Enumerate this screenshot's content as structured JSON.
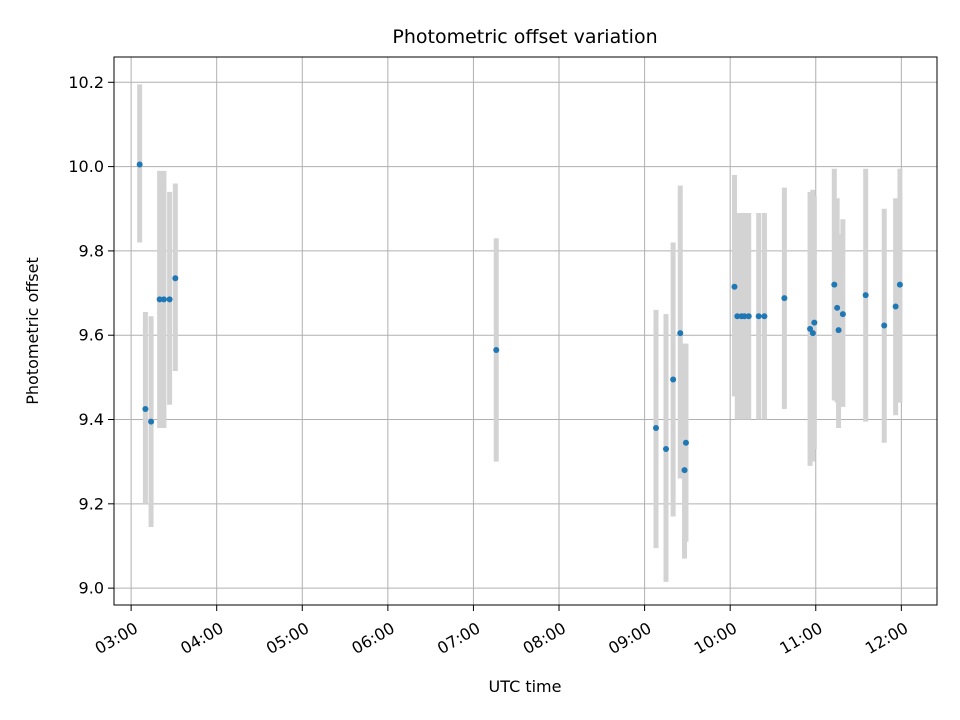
{
  "chart_data": {
    "type": "scatter",
    "title": "Photometric offset variation",
    "xlabel": "UTC time",
    "ylabel": "Photometric offset",
    "x_ticks": [
      "03:00",
      "04:00",
      "05:00",
      "06:00",
      "07:00",
      "08:00",
      "09:00",
      "10:00",
      "11:00",
      "12:00"
    ],
    "x_tick_hours": [
      3,
      4,
      5,
      6,
      7,
      8,
      9,
      10,
      11,
      12
    ],
    "y_ticks": [
      9.0,
      9.2,
      9.4,
      9.6,
      9.8,
      10.0,
      10.2
    ],
    "y_tick_labels": [
      "9.0",
      "9.2",
      "9.4",
      "9.6",
      "9.8",
      "10.0",
      "10.2"
    ],
    "xlim": [
      "02:48",
      "12:25"
    ],
    "ylim": [
      8.96,
      10.26
    ],
    "grid": true,
    "colors": {
      "point": "#1f77b4",
      "errorbar": "#d3d3d3",
      "grid": "#b0b0b0"
    },
    "points": [
      {
        "t": "03:06",
        "y": 10.005,
        "lo": 9.82,
        "hi": 10.195
      },
      {
        "t": "03:10",
        "y": 9.425,
        "lo": 9.2,
        "hi": 9.655
      },
      {
        "t": "03:14",
        "y": 9.395,
        "lo": 9.145,
        "hi": 9.645
      },
      {
        "t": "03:20",
        "y": 9.685,
        "lo": 9.38,
        "hi": 9.99
      },
      {
        "t": "03:23",
        "y": 9.685,
        "lo": 9.38,
        "hi": 9.99
      },
      {
        "t": "03:27",
        "y": 9.685,
        "lo": 9.435,
        "hi": 9.94
      },
      {
        "t": "03:31",
        "y": 9.735,
        "lo": 9.515,
        "hi": 9.96
      },
      {
        "t": "07:16",
        "y": 9.565,
        "lo": 9.3,
        "hi": 9.83
      },
      {
        "t": "09:08",
        "y": 9.38,
        "lo": 9.095,
        "hi": 9.66
      },
      {
        "t": "09:15",
        "y": 9.33,
        "lo": 9.015,
        "hi": 9.65
      },
      {
        "t": "09:20",
        "y": 9.495,
        "lo": 9.17,
        "hi": 9.82
      },
      {
        "t": "09:25",
        "y": 9.605,
        "lo": 9.26,
        "hi": 9.955
      },
      {
        "t": "09:28",
        "y": 9.28,
        "lo": 9.07,
        "hi": 9.58
      },
      {
        "t": "09:29",
        "y": 9.345,
        "lo": 9.11,
        "hi": 9.58
      },
      {
        "t": "10:03",
        "y": 9.715,
        "lo": 9.455,
        "hi": 9.98
      },
      {
        "t": "10:05",
        "y": 9.645,
        "lo": 9.4,
        "hi": 9.89
      },
      {
        "t": "10:08",
        "y": 9.645,
        "lo": 9.4,
        "hi": 9.89
      },
      {
        "t": "10:10",
        "y": 9.645,
        "lo": 9.4,
        "hi": 9.89
      },
      {
        "t": "10:13",
        "y": 9.645,
        "lo": 9.4,
        "hi": 9.89
      },
      {
        "t": "10:20",
        "y": 9.645,
        "lo": 9.4,
        "hi": 9.89
      },
      {
        "t": "10:24",
        "y": 9.645,
        "lo": 9.4,
        "hi": 9.89
      },
      {
        "t": "10:38",
        "y": 9.688,
        "lo": 9.425,
        "hi": 9.95
      },
      {
        "t": "10:56",
        "y": 9.615,
        "lo": 9.29,
        "hi": 9.94
      },
      {
        "t": "10:58",
        "y": 9.605,
        "lo": 9.3,
        "hi": 9.945
      },
      {
        "t": "10:59",
        "y": 9.63,
        "lo": 9.33,
        "hi": 9.93
      },
      {
        "t": "11:13",
        "y": 9.72,
        "lo": 9.445,
        "hi": 9.995
      },
      {
        "t": "11:15",
        "y": 9.665,
        "lo": 9.44,
        "hi": 9.925
      },
      {
        "t": "11:16",
        "y": 9.612,
        "lo": 9.38,
        "hi": 9.84
      },
      {
        "t": "11:19",
        "y": 9.65,
        "lo": 9.43,
        "hi": 9.875
      },
      {
        "t": "11:35",
        "y": 9.695,
        "lo": 9.395,
        "hi": 9.995
      },
      {
        "t": "11:48",
        "y": 9.623,
        "lo": 9.345,
        "hi": 9.9
      },
      {
        "t": "11:56",
        "y": 9.668,
        "lo": 9.41,
        "hi": 9.925
      },
      {
        "t": "11:59",
        "y": 9.72,
        "lo": 9.44,
        "hi": 9.995
      }
    ]
  }
}
